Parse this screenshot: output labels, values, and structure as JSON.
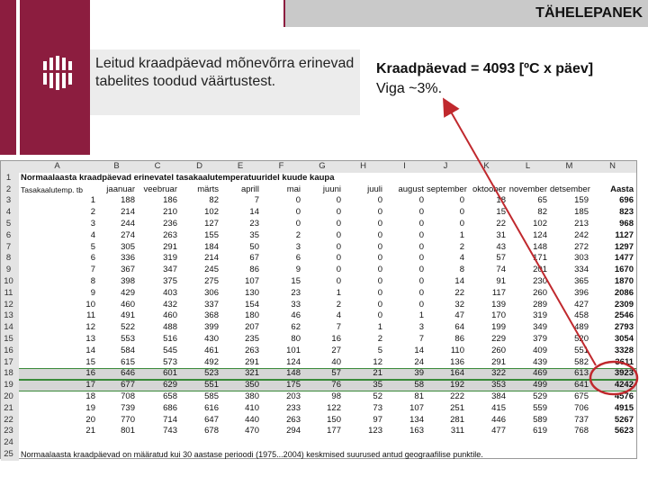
{
  "header": {
    "title": "TÄHELEPANEK"
  },
  "left_note": "Leitud kraadpäevad mõnevõrra erinevad tabelites toodud väärtustest.",
  "right_note": {
    "line1": "Kraadpäevad = 4093 [ºC x päev]",
    "line2": "Viga  ~3%."
  },
  "spreadsheet": {
    "column_letters": [
      "A",
      "B",
      "C",
      "D",
      "E",
      "F",
      "G",
      "H",
      "I",
      "J",
      "K",
      "L",
      "M",
      "N"
    ],
    "row_numbers": [
      "1",
      "2",
      "3",
      "4",
      "5",
      "6",
      "7",
      "8",
      "9",
      "10",
      "11",
      "12",
      "13",
      "14",
      "15",
      "16",
      "17",
      "18",
      "19",
      "20",
      "21",
      "22",
      "23",
      "24",
      "25"
    ],
    "title": "Normaalaasta kraadpäevad erinevatel tasakaalutemperatuuridel kuude kaupa",
    "headers": [
      "Tasakaalutemp. tb",
      "jaanuar",
      "veebruar",
      "märts",
      "aprill",
      "mai",
      "juuni",
      "juuli",
      "august",
      "september",
      "oktoober",
      "november",
      "detsember",
      "Aasta"
    ],
    "rows": [
      [
        "1",
        "188",
        "186",
        "82",
        "7",
        "0",
        "0",
        "0",
        "0",
        "0",
        "18",
        "65",
        "159",
        "696"
      ],
      [
        "2",
        "214",
        "210",
        "102",
        "14",
        "0",
        "0",
        "0",
        "0",
        "0",
        "15",
        "82",
        "185",
        "823"
      ],
      [
        "3",
        "244",
        "236",
        "127",
        "23",
        "0",
        "0",
        "0",
        "0",
        "0",
        "22",
        "102",
        "213",
        "968"
      ],
      [
        "4",
        "274",
        "263",
        "155",
        "35",
        "2",
        "0",
        "0",
        "0",
        "1",
        "31",
        "124",
        "242",
        "1127"
      ],
      [
        "5",
        "305",
        "291",
        "184",
        "50",
        "3",
        "0",
        "0",
        "0",
        "2",
        "43",
        "148",
        "272",
        "1297"
      ],
      [
        "6",
        "336",
        "319",
        "214",
        "67",
        "6",
        "0",
        "0",
        "0",
        "4",
        "57",
        "171",
        "303",
        "1477"
      ],
      [
        "7",
        "367",
        "347",
        "245",
        "86",
        "9",
        "0",
        "0",
        "0",
        "8",
        "74",
        "201",
        "334",
        "1670"
      ],
      [
        "8",
        "398",
        "375",
        "275",
        "107",
        "15",
        "0",
        "0",
        "0",
        "14",
        "91",
        "230",
        "365",
        "1870"
      ],
      [
        "9",
        "429",
        "403",
        "306",
        "130",
        "23",
        "1",
        "0",
        "0",
        "22",
        "117",
        "260",
        "396",
        "2086"
      ],
      [
        "10",
        "460",
        "432",
        "337",
        "154",
        "33",
        "2",
        "0",
        "0",
        "32",
        "139",
        "289",
        "427",
        "2309"
      ],
      [
        "11",
        "491",
        "460",
        "368",
        "180",
        "46",
        "4",
        "0",
        "1",
        "47",
        "170",
        "319",
        "458",
        "2546"
      ],
      [
        "12",
        "522",
        "488",
        "399",
        "207",
        "62",
        "7",
        "1",
        "3",
        "64",
        "199",
        "349",
        "489",
        "2793"
      ],
      [
        "13",
        "553",
        "516",
        "430",
        "235",
        "80",
        "16",
        "2",
        "7",
        "86",
        "229",
        "379",
        "520",
        "3054"
      ],
      [
        "14",
        "584",
        "545",
        "461",
        "263",
        "101",
        "27",
        "5",
        "14",
        "110",
        "260",
        "409",
        "551",
        "3328"
      ],
      [
        "15",
        "615",
        "573",
        "492",
        "291",
        "124",
        "40",
        "12",
        "24",
        "136",
        "291",
        "439",
        "582",
        "3611"
      ],
      [
        "16",
        "646",
        "601",
        "523",
        "321",
        "148",
        "57",
        "21",
        "39",
        "164",
        "322",
        "469",
        "613",
        "3923"
      ],
      [
        "17",
        "677",
        "629",
        "551",
        "350",
        "175",
        "76",
        "35",
        "58",
        "192",
        "353",
        "499",
        "641",
        "4242"
      ],
      [
        "18",
        "708",
        "658",
        "585",
        "380",
        "203",
        "98",
        "52",
        "81",
        "222",
        "384",
        "529",
        "675",
        "4576"
      ],
      [
        "19",
        "739",
        "686",
        "616",
        "410",
        "233",
        "122",
        "73",
        "107",
        "251",
        "415",
        "559",
        "706",
        "4915"
      ],
      [
        "20",
        "770",
        "714",
        "647",
        "440",
        "263",
        "150",
        "97",
        "134",
        "281",
        "446",
        "589",
        "737",
        "5267"
      ],
      [
        "21",
        "801",
        "743",
        "678",
        "470",
        "294",
        "177",
        "123",
        "163",
        "311",
        "477",
        "619",
        "768",
        "5623"
      ]
    ],
    "footnote": "Normaalaasta kraadpäevad on määratud kui 30 aastase perioodi (1975...2004) keskmised suurused antud geograafilise punktile."
  }
}
